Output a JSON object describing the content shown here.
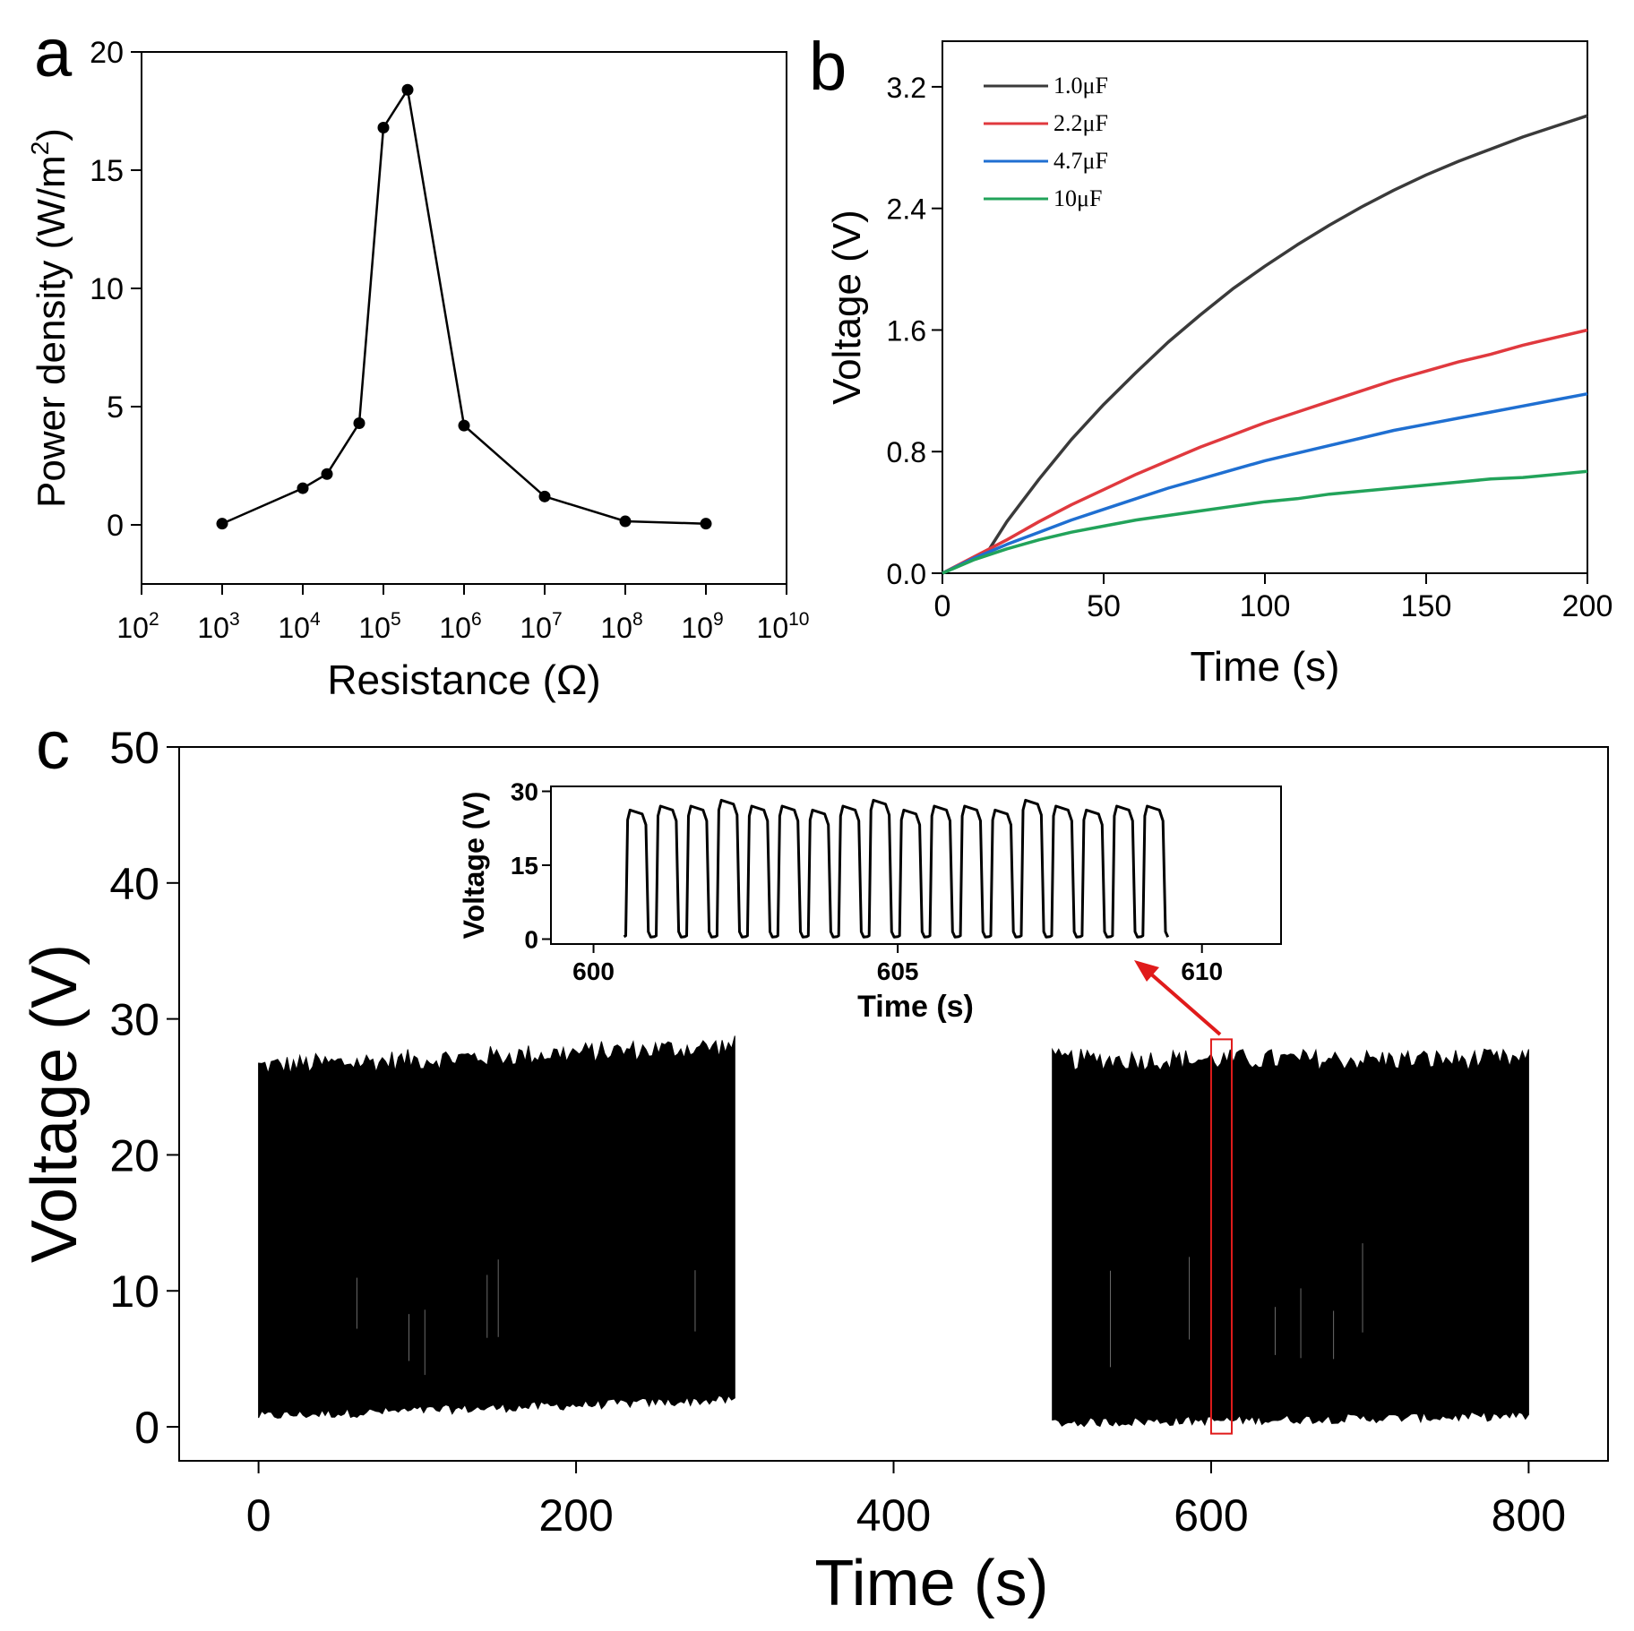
{
  "panel_labels": [
    "a",
    "b",
    "c"
  ],
  "colors": {
    "axis": "#000000",
    "c_1uF": "#3a3a3a",
    "c_2_2uF": "#e0393e",
    "c_4_7uF": "#1f6fd1",
    "c_10uF": "#22a35a",
    "highlight": "#e01b1b"
  },
  "chart_data": [
    {
      "id": "a",
      "type": "line",
      "title": "",
      "xlabel": "Resistance (Ω)",
      "ylabel_main": "Power density (W/m",
      "ylabel_sup": "2",
      "ylabel_tail": ")",
      "xscale": "log",
      "xlim_exp": [
        2,
        10
      ],
      "ylim": [
        -2.5,
        20
      ],
      "x_ticks": [
        {
          "base": "10",
          "exp": "2"
        },
        {
          "base": "10",
          "exp": "3"
        },
        {
          "base": "10",
          "exp": "4"
        },
        {
          "base": "10",
          "exp": "5"
        },
        {
          "base": "10",
          "exp": "6"
        },
        {
          "base": "10",
          "exp": "7"
        },
        {
          "base": "10",
          "exp": "8"
        },
        {
          "base": "10",
          "exp": "9"
        },
        {
          "base": "10",
          "exp": "10"
        }
      ],
      "y_ticks": [
        "0",
        "5",
        "10",
        "15",
        "20"
      ],
      "x_exp": [
        3,
        4,
        4.3,
        4.7,
        5,
        5.3,
        6,
        7,
        8,
        9
      ],
      "y": [
        0.05,
        1.55,
        2.15,
        4.3,
        16.8,
        18.4,
        4.2,
        1.2,
        0.15,
        0.05
      ]
    },
    {
      "id": "b",
      "type": "line",
      "xlabel": "Time (s)",
      "ylabel": "Voltage (V)",
      "xlim": [
        0,
        200
      ],
      "ylim": [
        0,
        3.5
      ],
      "x_ticks": [
        "0",
        "50",
        "100",
        "150",
        "200"
      ],
      "y_ticks": [
        "0.0",
        "0.8",
        "1.6",
        "2.4",
        "3.2"
      ],
      "legend_position": "top-left",
      "series": [
        {
          "name": "1.0μF",
          "color_key": "c_1uF",
          "x": [
            0,
            10,
            14,
            20,
            30,
            40,
            50,
            60,
            70,
            80,
            90,
            100,
            110,
            120,
            130,
            140,
            150,
            160,
            170,
            180,
            190,
            200
          ],
          "y": [
            0,
            0.1,
            0.14,
            0.34,
            0.62,
            0.88,
            1.11,
            1.32,
            1.52,
            1.7,
            1.87,
            2.02,
            2.16,
            2.29,
            2.41,
            2.52,
            2.62,
            2.71,
            2.79,
            2.87,
            2.94,
            3.01
          ]
        },
        {
          "name": "2.2μF",
          "color_key": "c_2_2uF",
          "x": [
            0,
            10,
            20,
            30,
            40,
            50,
            60,
            70,
            80,
            90,
            100,
            110,
            120,
            130,
            140,
            150,
            160,
            170,
            180,
            190,
            200
          ],
          "y": [
            0,
            0.11,
            0.22,
            0.34,
            0.45,
            0.55,
            0.65,
            0.74,
            0.83,
            0.91,
            0.99,
            1.06,
            1.13,
            1.2,
            1.27,
            1.33,
            1.39,
            1.44,
            1.5,
            1.55,
            1.6
          ]
        },
        {
          "name": "4.7μF",
          "color_key": "c_4_7uF",
          "x": [
            0,
            10,
            20,
            30,
            40,
            50,
            60,
            70,
            80,
            90,
            100,
            110,
            120,
            130,
            140,
            150,
            160,
            170,
            180,
            190,
            200
          ],
          "y": [
            0,
            0.1,
            0.19,
            0.27,
            0.35,
            0.42,
            0.49,
            0.56,
            0.62,
            0.68,
            0.74,
            0.79,
            0.84,
            0.89,
            0.94,
            0.98,
            1.02,
            1.06,
            1.1,
            1.14,
            1.18
          ]
        },
        {
          "name": "10μF",
          "color_key": "c_10uF",
          "x": [
            0,
            10,
            20,
            30,
            40,
            50,
            60,
            70,
            80,
            90,
            100,
            110,
            120,
            130,
            140,
            150,
            160,
            170,
            180,
            190,
            200
          ],
          "y": [
            0,
            0.09,
            0.16,
            0.22,
            0.27,
            0.31,
            0.35,
            0.38,
            0.41,
            0.44,
            0.47,
            0.49,
            0.52,
            0.54,
            0.56,
            0.58,
            0.6,
            0.62,
            0.63,
            0.65,
            0.67
          ]
        }
      ]
    },
    {
      "id": "c",
      "type": "line",
      "xlabel": "Time (s)",
      "ylabel": "Voltage (V)",
      "xlim": [
        -50,
        850
      ],
      "ylim": [
        -2.5,
        50
      ],
      "x_ticks": [
        "0",
        "200",
        "400",
        "600",
        "800"
      ],
      "y_ticks": [
        "0",
        "10",
        "20",
        "30",
        "40",
        "50"
      ],
      "segments": [
        {
          "x_start": 0,
          "x_end": 300,
          "v_min_start": 0.8,
          "v_min_end": 2.0,
          "v_max_start": 26.5,
          "v_max_end": 28.0
        },
        {
          "x_start": 500,
          "x_end": 800,
          "v_min_start": 0.3,
          "v_min_end": 0.8,
          "v_max_start": 27.0,
          "v_max_end": 27.0
        }
      ],
      "highlight_window": {
        "x_start": 600,
        "x_end": 613,
        "y_start": -0.5,
        "y_end": 28.5
      },
      "inset": {
        "xlabel": "Time (s)",
        "ylabel": "Voltage (V)",
        "xlim": [
          599.3,
          611.3
        ],
        "ylim": [
          -1,
          31
        ],
        "x_ticks": [
          "600",
          "605",
          "610"
        ],
        "y_ticks": [
          "0",
          "15",
          "30"
        ],
        "pulse_start": 600.5,
        "pulse_count": 18,
        "pulse_period": 0.5,
        "pulse_peak": 27
      }
    }
  ]
}
